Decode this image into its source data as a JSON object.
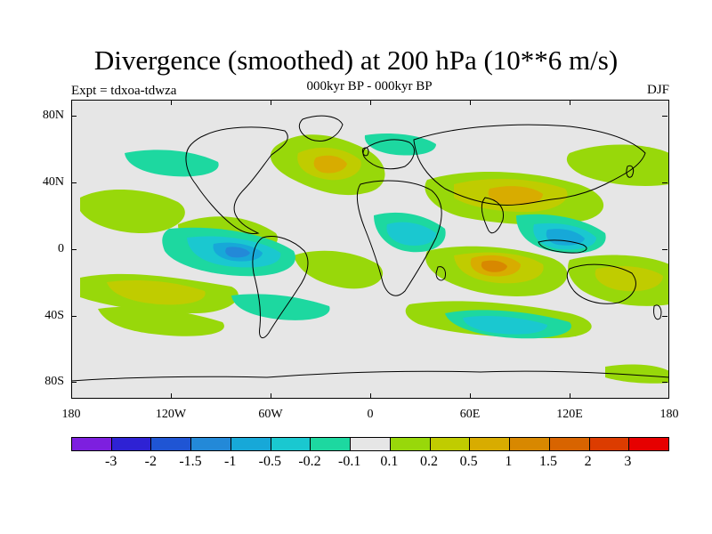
{
  "title": "Divergence (smoothed) at 200 hPa (10**6 m/s)",
  "subtitle": "000kyr BP - 000kyr BP",
  "experiment": "Expt = tdxoa-tdwza",
  "season": "DJF",
  "map": {
    "lat_labels": [
      "80N",
      "40N",
      "0",
      "40S",
      "80S"
    ],
    "lon_labels": [
      "180",
      "120W",
      "60W",
      "0",
      "60E",
      "120E",
      "180"
    ],
    "background_color": "#e6e6e6"
  },
  "colorbar": {
    "labels": [
      "-3",
      "-2",
      "-1.5",
      "-1",
      "-0.5",
      "-0.2",
      "-0.1",
      "0.1",
      "0.2",
      "0.5",
      "1",
      "1.5",
      "2",
      "3"
    ],
    "colors": [
      "#7d1fdf",
      "#2e22d4",
      "#1f55d4",
      "#2389d8",
      "#17a8d8",
      "#1ac8d0",
      "#1dd8a0",
      "#e6e6e6",
      "#98d80a",
      "#c0cc00",
      "#d8ac00",
      "#d88800",
      "#d86400",
      "#dc3c00",
      "#e60000"
    ]
  },
  "contour_fill": {
    "pos_light": "#98d80a",
    "pos_med": "#c0cc00",
    "pos_strong": "#d8ac00",
    "pos_very": "#d88800",
    "neg_light": "#1dd8a0",
    "neg_med": "#1ac8d0",
    "neg_strong": "#17a8d8",
    "neg_very": "#2389d8"
  }
}
